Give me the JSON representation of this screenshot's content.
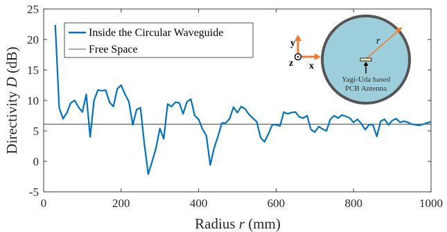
{
  "chart_data": {
    "type": "line",
    "xlabel": {
      "prefix": "Radius ",
      "var": "r",
      "suffix": " (mm)"
    },
    "ylabel": {
      "prefix": "Directivity ",
      "var": "D",
      "suffix": " (dB)"
    },
    "xlim": [
      0,
      1000
    ],
    "ylim": [
      -5,
      25
    ],
    "xticks": [
      0,
      200,
      400,
      600,
      800,
      1000
    ],
    "yticks": [
      -5,
      0,
      5,
      10,
      15,
      20,
      25
    ],
    "grid": false,
    "legend_position": "top-left",
    "colors": {
      "main": "#0072bd",
      "reference": "#555555"
    },
    "series": [
      {
        "name": "Inside the Circular Waveguide",
        "x": [
          30,
          40,
          50,
          60,
          70,
          80,
          90,
          100,
          110,
          120,
          130,
          140,
          150,
          160,
          170,
          180,
          190,
          200,
          210,
          220,
          230,
          240,
          250,
          260,
          270,
          280,
          290,
          300,
          310,
          320,
          330,
          340,
          350,
          360,
          370,
          380,
          390,
          400,
          410,
          420,
          430,
          440,
          450,
          460,
          470,
          480,
          490,
          500,
          510,
          520,
          530,
          540,
          550,
          560,
          570,
          580,
          590,
          600,
          610,
          620,
          630,
          640,
          650,
          660,
          670,
          680,
          690,
          700,
          710,
          720,
          730,
          740,
          750,
          760,
          770,
          780,
          790,
          800,
          810,
          820,
          830,
          840,
          850,
          860,
          870,
          880,
          890,
          900,
          910,
          920,
          930,
          940,
          950,
          960,
          970,
          980,
          990,
          1000
        ],
        "values": [
          22.4,
          8.8,
          7.0,
          8.0,
          9.6,
          10.0,
          8.9,
          8.1,
          11.0,
          4.0,
          10.0,
          11.7,
          11.6,
          11.7,
          9.7,
          9.0,
          11.9,
          12.5,
          11.0,
          9.8,
          6.0,
          8.5,
          8.8,
          2.8,
          -2.1,
          0.0,
          2.2,
          5.4,
          3.7,
          9.4,
          9.0,
          9.7,
          9.6,
          7.8,
          9.8,
          10.2,
          7.5,
          6.9,
          5.3,
          4.2,
          -0.6,
          2.2,
          4.1,
          6.3,
          6.3,
          7.0,
          8.9,
          8.0,
          9.0,
          8.6,
          7.7,
          7.1,
          6.5,
          3.9,
          3.2,
          4.5,
          6.0,
          6.0,
          5.8,
          8.1,
          7.8,
          8.0,
          8.1,
          7.3,
          7.1,
          7.5,
          5.2,
          4.8,
          5.7,
          5.3,
          5.0,
          6.9,
          7.5,
          7.1,
          7.6,
          7.4,
          7.1,
          6.4,
          6.9,
          6.2,
          5.2,
          6.0,
          6.0,
          4.1,
          6.6,
          6.9,
          6.0,
          6.7,
          7.0,
          6.4,
          6.6,
          6.4,
          6.1,
          6.0,
          5.9,
          6.1,
          6.3,
          6.5
        ]
      },
      {
        "name": "Free Space",
        "x": [
          0,
          1000
        ],
        "values": [
          6.1,
          6.1
        ]
      }
    ]
  },
  "inset": {
    "r_label": "r",
    "caption_line1": "Yagi-Uda based",
    "caption_line2": "PCB Antenna",
    "axis_y": "y",
    "axis_x": "x",
    "axis_z": "z",
    "colors": {
      "fill": "#9ccfdb",
      "rim": "#555555",
      "arrow": "#ed7d31"
    }
  }
}
